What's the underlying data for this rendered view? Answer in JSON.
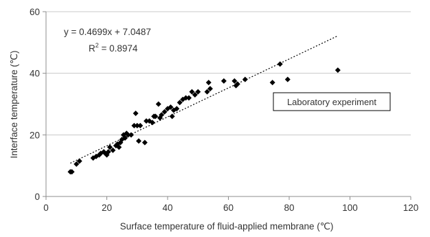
{
  "chart_data": {
    "type": "scatter",
    "title": "",
    "xlabel": "Surface temperature of fluid-applied membrane (℃)",
    "ylabel": "Interface temperature (℃)",
    "xlim": [
      0,
      120
    ],
    "ylim": [
      0,
      60
    ],
    "x_ticks": [
      "0",
      "20",
      "40",
      "60",
      "80",
      "100",
      "120"
    ],
    "y_ticks": [
      "0",
      "20",
      "40",
      "60"
    ],
    "grid": "horizontal",
    "series": [
      {
        "name": "Laboratory experiment",
        "marker": "diamond",
        "color": "#000000",
        "points": [
          [
            8,
            8
          ],
          [
            8.5,
            8
          ],
          [
            10,
            10.5
          ],
          [
            11,
            11.5
          ],
          [
            15.5,
            12.5
          ],
          [
            16.5,
            13
          ],
          [
            17.5,
            13.5
          ],
          [
            18,
            14
          ],
          [
            19,
            14.5
          ],
          [
            19.5,
            14
          ],
          [
            20,
            13.5
          ],
          [
            20.5,
            14.5
          ],
          [
            21,
            16
          ],
          [
            22,
            15
          ],
          [
            23,
            16.5
          ],
          [
            23.5,
            17
          ],
          [
            24,
            16
          ],
          [
            24.5,
            17.5
          ],
          [
            25,
            18.5
          ],
          [
            25.5,
            20
          ],
          [
            26,
            19
          ],
          [
            26.5,
            20.5
          ],
          [
            27,
            20
          ],
          [
            28,
            20
          ],
          [
            29,
            23
          ],
          [
            29.5,
            27
          ],
          [
            30,
            23
          ],
          [
            30.5,
            18
          ],
          [
            31,
            23
          ],
          [
            32.5,
            17.5
          ],
          [
            33,
            24.5
          ],
          [
            34,
            24.5
          ],
          [
            35,
            24
          ],
          [
            35.5,
            26
          ],
          [
            36,
            26
          ],
          [
            37,
            30
          ],
          [
            37.5,
            25.5
          ],
          [
            38,
            26.5
          ],
          [
            39,
            27.5
          ],
          [
            40,
            28.5
          ],
          [
            41,
            29
          ],
          [
            41.5,
            26
          ],
          [
            42,
            28
          ],
          [
            43,
            28.5
          ],
          [
            44,
            30.5
          ],
          [
            45,
            31.5
          ],
          [
            46,
            32
          ],
          [
            47,
            32
          ],
          [
            48,
            34
          ],
          [
            49,
            33
          ],
          [
            50,
            34
          ],
          [
            53,
            34
          ],
          [
            53.5,
            37
          ],
          [
            54,
            35
          ],
          [
            58.5,
            37.5
          ],
          [
            62,
            37.5
          ],
          [
            62.5,
            36
          ],
          [
            63,
            36.5
          ],
          [
            65.5,
            38
          ],
          [
            74.5,
            37
          ],
          [
            77,
            43
          ],
          [
            79.5,
            38
          ],
          [
            96,
            41
          ]
        ]
      }
    ],
    "trendline": {
      "style": "dotted",
      "slope": 0.4699,
      "intercept": 7.0487,
      "x_range": [
        8,
        96
      ]
    },
    "annotations": {
      "equation": "y = 0.4699x + 7.0487",
      "r2_prefix": "R",
      "r2_sup": "2",
      "r2_value": " = 0.8974"
    },
    "legend": {
      "placement": "right",
      "label": "Laboratory experiment"
    }
  }
}
